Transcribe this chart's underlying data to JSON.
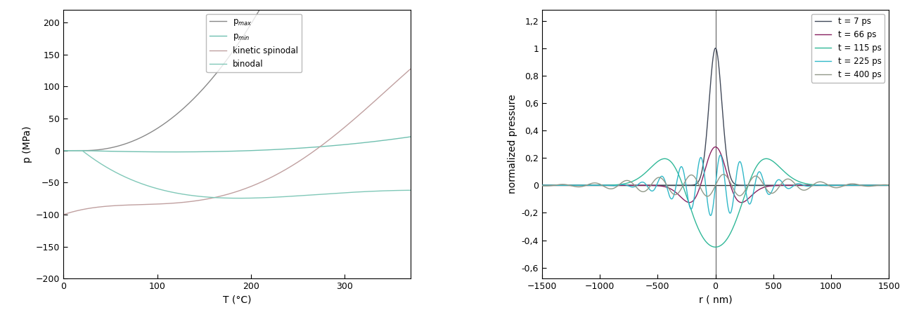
{
  "left_plot": {
    "xlabel": "T (°C)",
    "ylabel": "p (MPa)",
    "xlim": [
      0,
      370
    ],
    "ylim": [
      -200,
      220
    ],
    "xticks": [
      0,
      100,
      200,
      300
    ],
    "yticks": [
      -200,
      -150,
      -100,
      -50,
      0,
      50,
      100,
      150,
      200
    ],
    "pmax_color": "#888888",
    "pmin_color": "#70c0b0",
    "kinetic_color": "#c0a0a0",
    "binodal_color": "#80c8b8"
  },
  "right_plot": {
    "xlabel": "r ( nm)",
    "ylabel": "normalized pressure",
    "xlim": [
      -1500,
      1500
    ],
    "ylim": [
      -0.68,
      1.28
    ],
    "xticks": [
      -1500,
      -1000,
      -500,
      0,
      500,
      1000,
      1500
    ],
    "yticks": [
      -0.6,
      -0.4,
      -0.2,
      0,
      0.2,
      0.4,
      0.6,
      0.8,
      1.0,
      1.2
    ],
    "ytick_labels": [
      "-0,6",
      "-0,4",
      "-0,2",
      "0",
      "0,2",
      "0,4",
      "0,6",
      "0,8",
      "1",
      "1,2"
    ],
    "legend_labels": [
      "t = 7 ps",
      "t = 66 ps",
      "t = 115 ps",
      "t = 225 ps",
      "t = 400 ps"
    ],
    "line_colors": [
      "#404858",
      "#882060",
      "#30b898",
      "#30b8c8",
      "#909888"
    ]
  }
}
